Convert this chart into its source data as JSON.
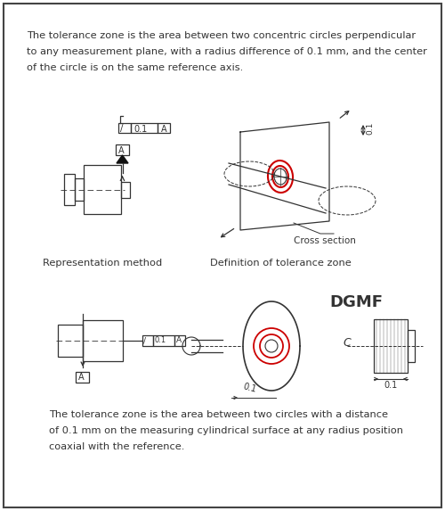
{
  "bg_color": "#ffffff",
  "border_color": "#444444",
  "text_color": "#333333",
  "diagram_color": "#333333",
  "red_color": "#cc0000",
  "top_text": [
    "The tolerance zone is the area between two concentric circles perpendicular",
    "to any measurement plane, with a radius difference of 0.1 mm, and the center",
    "of the circle is on the same reference axis."
  ],
  "label_rep": "Representation method",
  "label_def": "Definition of tolerance zone",
  "label_dgmf": "DGMF",
  "label_cross": "Cross section",
  "bottom_text": [
    "The tolerance zone is the area between two circles with a distance",
    "of 0.1 mm on the measuring cylindrical surface at any radius position",
    "coaxial with the reference."
  ],
  "figsize": [
    5.0,
    5.73
  ],
  "dpi": 100
}
